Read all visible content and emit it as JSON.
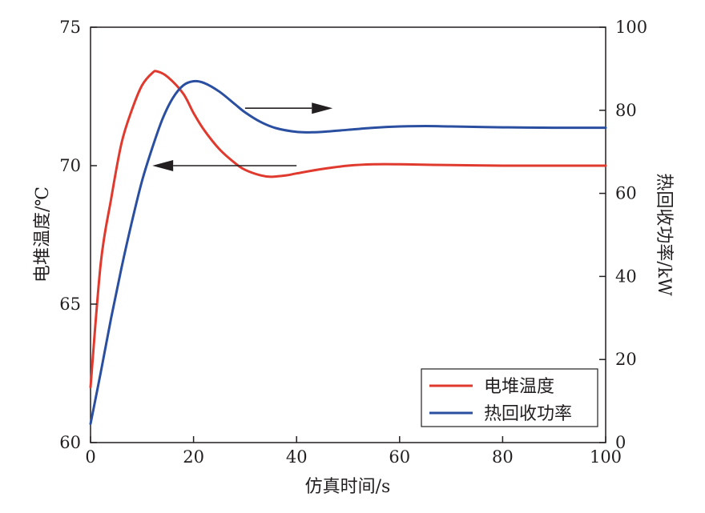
{
  "chart_data": {
    "type": "line",
    "title": "",
    "xlabel": "仿真时间/s",
    "ylabel_left": "电堆温度/℃",
    "ylabel_right": "热回收功率/kW",
    "xlim": [
      0,
      100
    ],
    "ylim_left": [
      60,
      75
    ],
    "ylim_right": [
      0,
      100
    ],
    "x_ticks": [
      "0",
      "20",
      "40",
      "60",
      "80",
      "100"
    ],
    "y_left_ticks": [
      "60",
      "65",
      "70",
      "75"
    ],
    "y_right_ticks": [
      "0",
      "20",
      "40",
      "60",
      "80",
      "100"
    ],
    "grid": false,
    "legend_position": "bottom-right",
    "series": [
      {
        "name": "电堆温度",
        "axis": "left",
        "color": "#e03a2f",
        "x": [
          0,
          2,
          4,
          6,
          8,
          10,
          12,
          13,
          15,
          18,
          20,
          22,
          25,
          28,
          30,
          33,
          35,
          38,
          40,
          45,
          50,
          55,
          60,
          70,
          80,
          90,
          100
        ],
        "y": [
          62.0,
          66.5,
          68.8,
          70.8,
          72.0,
          72.9,
          73.35,
          73.4,
          73.2,
          72.6,
          71.9,
          71.3,
          70.6,
          70.1,
          69.85,
          69.65,
          69.6,
          69.65,
          69.72,
          69.88,
          70.0,
          70.05,
          70.05,
          70.02,
          70.0,
          70.0,
          70.0
        ]
      },
      {
        "name": "热回收功率",
        "axis": "right",
        "color": "#2a4fa0",
        "x": [
          0,
          2,
          4,
          6,
          8,
          10,
          12,
          14,
          16,
          18,
          20,
          22,
          25,
          28,
          30,
          33,
          36,
          40,
          43,
          46,
          50,
          55,
          60,
          65,
          70,
          80,
          90,
          100
        ],
        "y": [
          4.5,
          17,
          30,
          42,
          53,
          63,
          71,
          78,
          83,
          86,
          87,
          86.6,
          84.5,
          81.5,
          79.5,
          77.2,
          75.7,
          74.8,
          74.7,
          74.9,
          75.3,
          75.8,
          76.1,
          76.2,
          76.1,
          75.9,
          75.8,
          75.8
        ]
      }
    ],
    "annotations": [
      {
        "type": "arrow",
        "direction": "left",
        "points_to": "left-axis"
      },
      {
        "type": "arrow",
        "direction": "right",
        "points_to": "right-axis"
      }
    ]
  }
}
